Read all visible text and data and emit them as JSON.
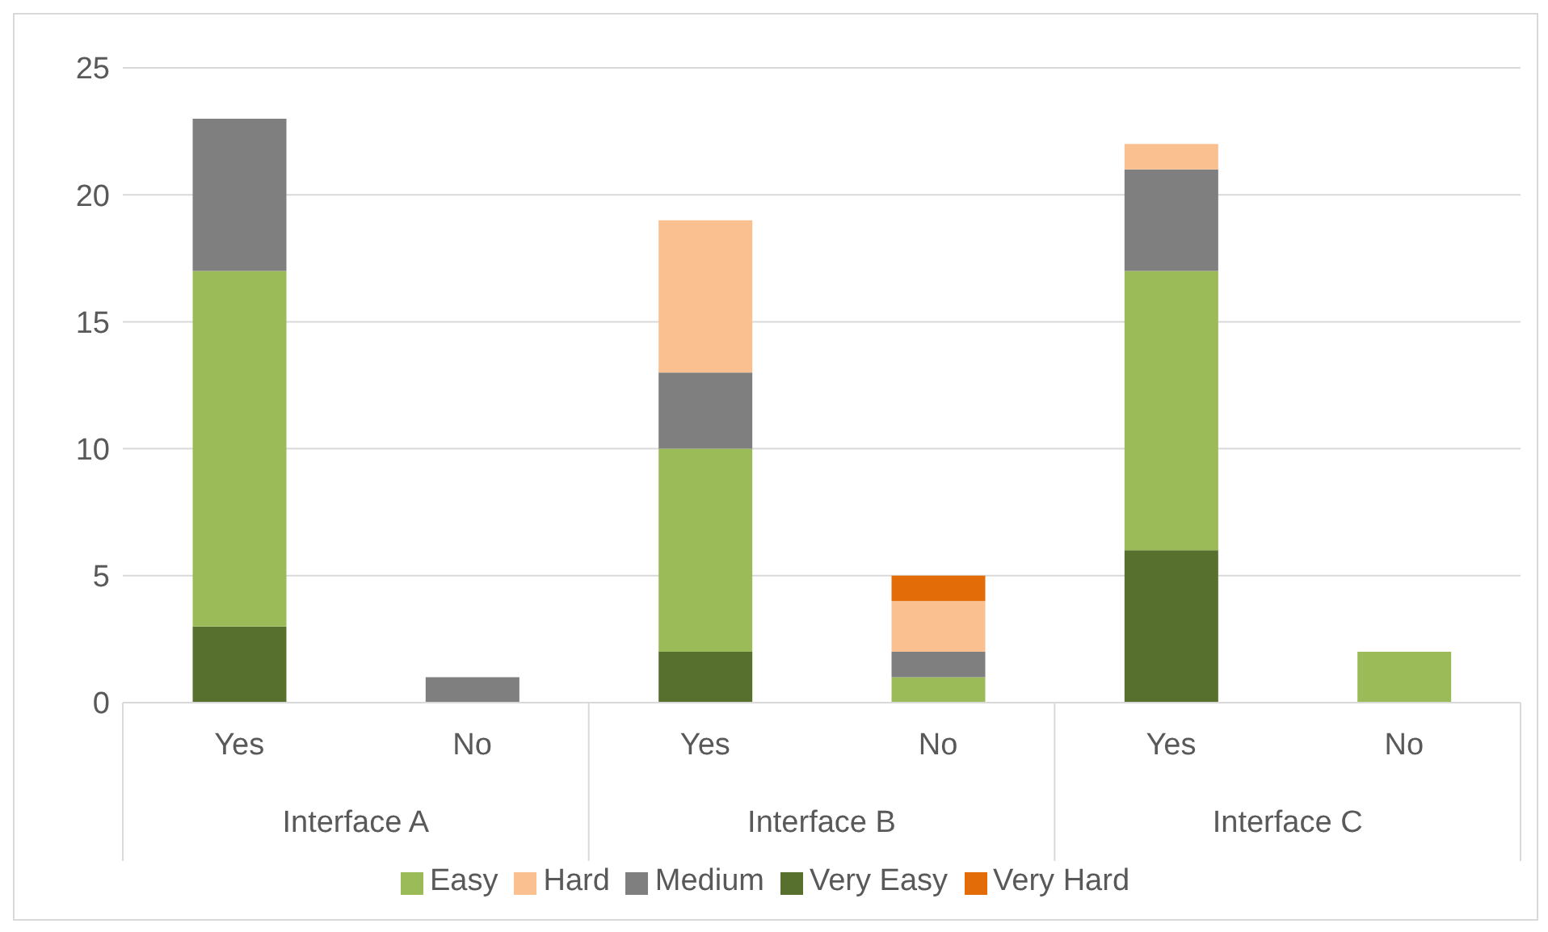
{
  "chart_data": {
    "type": "bar",
    "stacked": true,
    "categories": [
      "Yes",
      "No",
      "Yes",
      "No",
      "Yes",
      "No"
    ],
    "annotations": [
      "Interface A",
      "Interface B",
      "Interface C"
    ],
    "series": [
      {
        "name": "Very Easy",
        "color": "#58702e",
        "values": [
          3,
          0,
          2,
          0,
          6,
          0
        ]
      },
      {
        "name": "Easy",
        "color": "#9bbb59",
        "values": [
          14,
          0,
          8,
          1,
          11,
          2
        ]
      },
      {
        "name": "Medium",
        "color": "#7f7f7f",
        "values": [
          6,
          1,
          3,
          1,
          4,
          0
        ]
      },
      {
        "name": "Hard",
        "color": "#fac090",
        "values": [
          0,
          0,
          6,
          2,
          1,
          0
        ]
      },
      {
        "name": "Very Hard",
        "color": "#e36c09",
        "values": [
          0,
          0,
          0,
          1,
          0,
          0
        ]
      }
    ],
    "ylim": [
      0,
      25
    ],
    "yticks": [
      0,
      5,
      10,
      15,
      20,
      25
    ],
    "grid": "y",
    "legend": "bottom"
  }
}
